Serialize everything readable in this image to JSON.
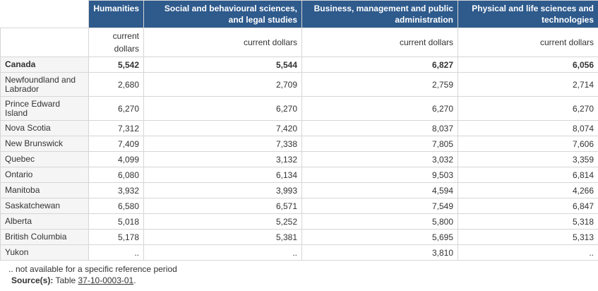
{
  "table": {
    "columns": [
      "Humanities",
      "Social and behavioural sciences, and legal studies",
      "Business, management and public administration",
      "Physical and life sciences and technologies"
    ],
    "units": [
      "current dollars",
      "current dollars",
      "current dollars",
      "current dollars"
    ],
    "rows": [
      {
        "label": "Canada",
        "values": [
          "5,542",
          "5,544",
          "6,827",
          "6,056"
        ],
        "bold": true
      },
      {
        "label": "Newfoundland and Labrador",
        "values": [
          "2,680",
          "2,709",
          "2,759",
          "2,714"
        ]
      },
      {
        "label": "Prince Edward Island",
        "values": [
          "6,270",
          "6,270",
          "6,270",
          "6,270"
        ]
      },
      {
        "label": "Nova Scotia",
        "values": [
          "7,312",
          "7,420",
          "8,037",
          "8,074"
        ]
      },
      {
        "label": "New Brunswick",
        "values": [
          "7,409",
          "7,338",
          "7,805",
          "7,606"
        ]
      },
      {
        "label": "Quebec",
        "values": [
          "4,099",
          "3,132",
          "3,032",
          "3,359"
        ]
      },
      {
        "label": "Ontario",
        "values": [
          "6,080",
          "6,134",
          "9,503",
          "6,814"
        ]
      },
      {
        "label": "Manitoba",
        "values": [
          "3,932",
          "3,993",
          "4,594",
          "4,266"
        ]
      },
      {
        "label": "Saskatchewan",
        "values": [
          "6,580",
          "6,571",
          "7,549",
          "6,847"
        ]
      },
      {
        "label": "Alberta",
        "values": [
          "5,018",
          "5,252",
          "5,800",
          "5,318"
        ]
      },
      {
        "label": "British Columbia",
        "values": [
          "5,178",
          "5,381",
          "5,695",
          "5,313"
        ]
      },
      {
        "label": "Yukon",
        "values": [
          "..",
          "..",
          "3,810",
          ".."
        ]
      }
    ]
  },
  "footnotes": {
    "not_available": "..  not available for a specific reference period",
    "source_label": "Source(s):",
    "source_prefix": "Table",
    "source_link": "37-10-0003-01",
    "source_suffix": "."
  }
}
